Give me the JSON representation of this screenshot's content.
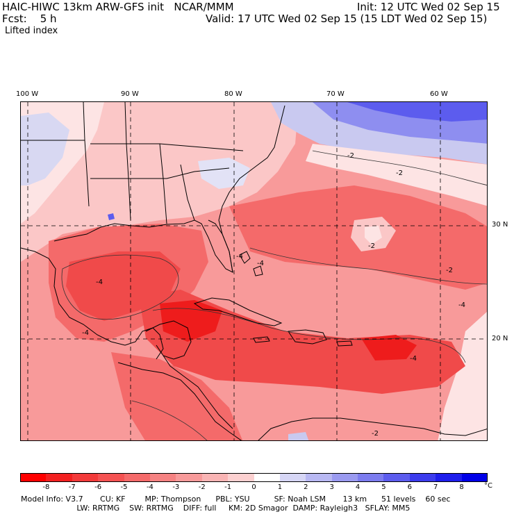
{
  "header": {
    "model_title": "HAIC-HIWC 13km ARW-GFS init   NCAR/MMM",
    "init": "Init: 12 UTC Wed 02 Sep 15",
    "fcst": "Fcst:    5 h",
    "valid": "Valid: 17 UTC Wed 02 Sep 15 (15 LDT Wed 02 Sep 15)",
    "field": "Lifted index"
  },
  "map": {
    "lon_labels": [
      "100 W",
      "90 W",
      "80 W",
      "70 W",
      "60 W"
    ],
    "lat_labels": [
      "30 N",
      "20 N"
    ],
    "contour_labels": [
      "-4",
      "-4",
      "-4",
      "-4",
      "-4",
      "-4",
      "-2",
      "-2",
      "-2",
      "-2",
      "-2"
    ],
    "colors": {
      "deep_red": "#ee1c1c",
      "red": "#f04a4a",
      "mid_red": "#f46a6a",
      "light_red": "#f89a9a",
      "pale_red": "#fbc7c7",
      "very_pale": "#fde4e4",
      "blue_light": "#c9c9f0",
      "blue_mid": "#8e8ef0",
      "blue_deep": "#3d3df0"
    }
  },
  "colorbar": {
    "ticks": [
      "-8",
      "-7",
      "-6",
      "-5",
      "-4",
      "-3",
      "-2",
      "-1",
      "0",
      "1",
      "2",
      "3",
      "4",
      "5",
      "6",
      "7",
      "8"
    ],
    "unit": "°C",
    "colors": [
      "#ff0000",
      "#f22020",
      "#f23a3a",
      "#f45252",
      "#f46a6a",
      "#f58282",
      "#f79a9a",
      "#f9b4b4",
      "#fcd0d0",
      "#ffffff",
      "#d6d6f5",
      "#b8b8f2",
      "#9a9af0",
      "#7c7cef",
      "#5c5cee",
      "#3c3ced",
      "#1e1eec",
      "#0000e8"
    ]
  },
  "model_info": {
    "line1": "Model Info: V3.7       CU: KF        MP: Thompson      PBL: YSU          SF: Noah LSM       13 km      51 levels    60 sec",
    "line2": "                       LW: RRTMG    SW: RRTMG    DIFF: full     KM: 2D Smagor  DAMP: Rayleigh3   SFLAY: MM5"
  }
}
